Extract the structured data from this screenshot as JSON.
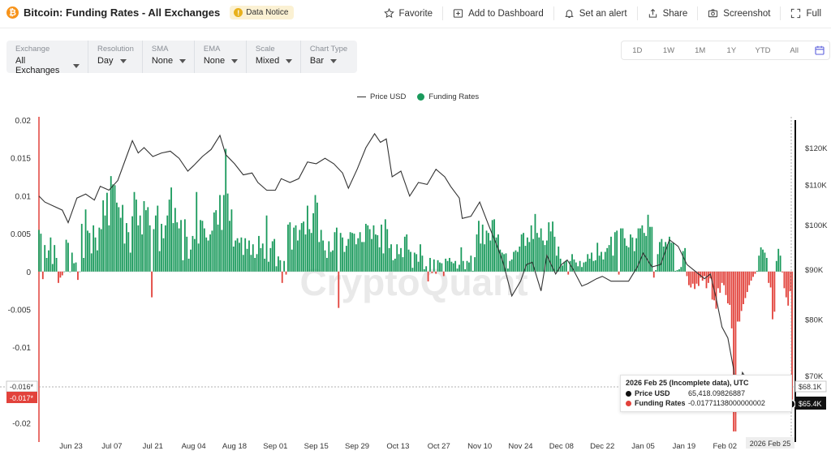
{
  "header": {
    "logo_icon": "bitcoin-logo-icon",
    "title": "Bitcoin: Funding Rates - All Exchanges",
    "notice_label": "Data Notice",
    "actions": {
      "favorite": "Favorite",
      "add_dashboard": "Add to Dashboard",
      "alert": "Set an alert",
      "share": "Share",
      "screenshot": "Screenshot",
      "full": "Full"
    }
  },
  "controls": [
    {
      "label": "Exchange",
      "value": "All Exchanges"
    },
    {
      "label": "Resolution",
      "value": "Day"
    },
    {
      "label": "SMA",
      "value": "None"
    },
    {
      "label": "EMA",
      "value": "None"
    },
    {
      "label": "Scale",
      "value": "Mixed"
    },
    {
      "label": "Chart Type",
      "value": "Bar"
    }
  ],
  "ranges": [
    "1D",
    "1W",
    "1M",
    "1Y",
    "YTD",
    "All"
  ],
  "legend": {
    "price": "Price USD",
    "funding": "Funding Rates"
  },
  "colors": {
    "positive": "#1a9a5c",
    "negative": "#e2423b",
    "price_line": "#333333",
    "accent": "#5b5fdc"
  },
  "watermark": "CryptoQuant",
  "tooltip": {
    "title": "2026 Feb 25 (Incomplete data), UTC",
    "price_label": "Price USD",
    "price_value": "65,418.09826887",
    "funding_label": "Funding Rates",
    "funding_value": "-0.01771138000000002"
  },
  "crosshair": {
    "left_labels": [
      "-0.016*",
      "-0.017*"
    ],
    "right_labels": [
      "$68.1K",
      "$65.4K"
    ],
    "date_label": "2026 Feb 25"
  },
  "chart_data": {
    "type": "bar",
    "x_start": "2025-06-12",
    "x_end": "2026-02-25",
    "x_ticks": [
      "Jun 23",
      "Jul 07",
      "Jul 21",
      "Aug 04",
      "Aug 18",
      "Sep 01",
      "Sep 15",
      "Sep 29",
      "Oct 13",
      "Oct 27",
      "Nov 10",
      "Nov 24",
      "Dec 08",
      "Dec 22",
      "Jan 05",
      "Jan 19",
      "Feb 02"
    ],
    "y_left": {
      "ticks": [
        "0.02",
        "0.015",
        "0.01",
        "0.005",
        "0",
        "-0.005",
        "-0.01",
        "-0.015",
        "-0.02"
      ],
      "range": [
        -0.0225,
        0.02
      ]
    },
    "y_right": {
      "scale": "log",
      "ticks": [
        "$120K",
        "$110K",
        "$100K",
        "$90K",
        "$80K",
        "$70K"
      ]
    },
    "series": [
      {
        "name": "Funding Rates",
        "kind": "bar",
        "values": [
          0.0055,
          0.005,
          -0.001,
          0.0035,
          0.0018,
          0.0028,
          0.0045,
          0.001,
          0.0035,
          0.0018,
          -0.0015,
          -0.0008,
          -0.0005,
          0.0,
          0.0042,
          0.0038,
          0.0,
          0.0025,
          0.0011,
          0.0012,
          -0.0011,
          0.0,
          0.0063,
          0.0018,
          0.0082,
          0.0054,
          0.0051,
          0.0024,
          0.0061,
          0.0045,
          0.0028,
          0.0058,
          0.0056,
          0.0094,
          0.0074,
          0.0104,
          0.0061,
          0.0126,
          0.0115,
          0.0114,
          0.0091,
          0.0085,
          0.0071,
          0.0088,
          0.0037,
          0.0064,
          0.0052,
          0.0025,
          0.0073,
          0.0105,
          0.0095,
          0.0061,
          0.0074,
          0.0049,
          0.0093,
          0.0081,
          0.0085,
          0.0061,
          -0.0034,
          0.0056,
          0.0074,
          0.0087,
          0.0027,
          0.0063,
          0.0044,
          0.0061,
          0.0074,
          0.0095,
          0.0111,
          0.0064,
          0.0084,
          0.0065,
          0.0057,
          0.0068,
          0.0015,
          0.0069,
          0.0046,
          0.0017,
          0.0029,
          0.0047,
          0.0043,
          0.0105,
          0.0037,
          0.0068,
          0.0067,
          0.0057,
          0.0045,
          0.0041,
          0.0049,
          0.0054,
          0.0078,
          0.0081,
          0.0062,
          0.0101,
          0.0055,
          0.0101,
          0.0162,
          0.0103,
          0.0067,
          0.0082,
          0.0033,
          0.0041,
          0.0044,
          0.0038,
          0.0045,
          0.0022,
          0.0044,
          0.003,
          0.0041,
          0.0022,
          0.0036,
          0.0018,
          0.0023,
          0.0047,
          0.0031,
          0.0037,
          0.0017,
          0.0074,
          0.0013,
          0.0031,
          0.004,
          0.0043,
          0.0007,
          0.002,
          0.0015,
          -0.0015,
          0.0014,
          -0.0004,
          0.0062,
          0.0065,
          0.0029,
          0.0058,
          0.0061,
          0.0041,
          0.0055,
          0.0064,
          0.0066,
          0.0049,
          0.0087,
          0.0056,
          0.0051,
          0.0077,
          0.0101,
          0.0091,
          0.0039,
          0.0055,
          0.0041,
          0.0028,
          0.0018,
          0.004,
          0.0026,
          0.0028,
          0.0052,
          0.0058,
          -0.0048,
          0.0051,
          0.0045,
          0.0026,
          0.0034,
          0.0043,
          0.0052,
          0.0051,
          0.005,
          0.0036,
          0.0044,
          0.0052,
          0.0039,
          0.0039,
          0.0063,
          0.0061,
          0.0056,
          0.0043,
          0.0061,
          0.0049,
          0.0048,
          0.0032,
          0.0062,
          0.0024,
          0.0069,
          0.0056,
          0.0031,
          0.0036,
          0.0015,
          0.0017,
          0.0036,
          0.0023,
          0.0031,
          0.0019,
          0.0046,
          0.0049,
          0.0029,
          0.0026,
          0.0005,
          0.0025,
          0.0023,
          0.0013,
          0.0036,
          0.0021,
          0.0003,
          0.0007,
          -0.0013,
          0.0018,
          -0.0002,
          0.0016,
          -0.0003,
          0.0015,
          0.0012,
          0.0011,
          -0.0006,
          0.0017,
          0.0014,
          0.0018,
          0.0013,
          0.0011,
          0.0014,
          0.0004,
          0.0009,
          0.0032,
          0.0014,
          0.0003,
          0.0014,
          0.0012,
          0.0021,
          0.0001,
          0.0019,
          0.0049,
          0.0067,
          0.0037,
          0.0062,
          0.0036,
          0.0054,
          0.0051,
          0.0041,
          0.0068,
          0.0069,
          0.0045,
          0.0049,
          0.0029,
          0.0025,
          0.0023,
          0.0024,
          0.0004,
          0.0014,
          0.0016,
          0.0026,
          0.0028,
          0.0026,
          0.0033,
          0.0049,
          0.0051,
          0.0034,
          0.0045,
          0.0039,
          0.0061,
          0.0043,
          0.0076,
          0.0051,
          0.0045,
          0.0057,
          0.0041,
          0.0035,
          0.0041,
          0.0065,
          0.0053,
          0.0066,
          0.0046,
          0.0021,
          0.0033,
          0.0017,
          0.0008,
          0.0013,
          0.0015,
          -0.0004,
          0.0014,
          0.0023,
          0.0016,
          0.0012,
          0.0007,
          0.0014,
          0.0006,
          0.0012,
          0.0013,
          0.0023,
          0.0017,
          0.0025,
          0.0014,
          0.0015,
          0.0038,
          0.0021,
          0.0026,
          0.0016,
          0.0026,
          0.0031,
          0.0035,
          0.0046,
          0.0021,
          0.0052,
          0.0054,
          -0.0004,
          0.0057,
          0.0057,
          0.0044,
          0.0034,
          0.0032,
          0.0049,
          0.0045,
          0.0027,
          0.0044,
          0.0057,
          0.0057,
          0.0061,
          0.0051,
          0.0047,
          0.0075,
          0.0059,
          0.0059,
          -0.0008,
          0.0002,
          0.0023,
          0.0039,
          0.0043,
          0.0033,
          0.0039,
          0.0036,
          0.0046,
          0.0038,
          0.0038,
          0.0001,
          0.0002,
          0.0003,
          0.0006,
          0.0027,
          0.0031,
          -0.0006,
          -0.0018,
          -0.0021,
          -0.0016,
          -0.0023,
          -0.0016,
          -0.0019,
          -0.0008,
          -0.0012,
          -0.0006,
          -0.0022,
          -0.0015,
          -0.0009,
          -0.0037,
          -0.0038,
          -0.0049,
          -0.0022,
          -0.0028,
          -0.0015,
          -0.0018,
          -0.0031,
          -0.0042,
          -0.0044,
          -0.0075,
          -0.0211,
          -0.0211,
          -0.0066,
          -0.0066,
          -0.0052,
          -0.0043,
          -0.0035,
          -0.0027,
          -0.0018,
          -0.0012,
          -0.0007,
          -0.0003,
          0.0001,
          0.0021,
          0.0032,
          0.0029,
          0.0025,
          0.0018,
          -0.0015,
          -0.0021,
          -0.0063,
          -0.0053,
          0.0014,
          0.003,
          0.0021,
          -0.0001,
          -0.0022,
          -0.0034,
          -0.0045,
          -0.0026,
          -0.0177
        ]
      },
      {
        "name": "Price USD",
        "kind": "line",
        "points": [
          [
            "2025-06-12",
            107000
          ],
          [
            "2025-06-14",
            105500
          ],
          [
            "2025-06-17",
            104500
          ],
          [
            "2025-06-20",
            103500
          ],
          [
            "2025-06-22",
            100500
          ],
          [
            "2025-06-25",
            106500
          ],
          [
            "2025-06-28",
            107500
          ],
          [
            "2025-07-01",
            106000
          ],
          [
            "2025-07-03",
            109500
          ],
          [
            "2025-07-06",
            108500
          ],
          [
            "2025-07-09",
            111000
          ],
          [
            "2025-07-12",
            117500
          ],
          [
            "2025-07-14",
            122000
          ],
          [
            "2025-07-16",
            118500
          ],
          [
            "2025-07-18",
            120000
          ],
          [
            "2025-07-21",
            117500
          ],
          [
            "2025-07-24",
            118500
          ],
          [
            "2025-07-27",
            119000
          ],
          [
            "2025-07-30",
            117000
          ],
          [
            "2025-08-02",
            113500
          ],
          [
            "2025-08-04",
            115000
          ],
          [
            "2025-08-07",
            117500
          ],
          [
            "2025-08-10",
            119500
          ],
          [
            "2025-08-13",
            123500
          ],
          [
            "2025-08-15",
            118000
          ],
          [
            "2025-08-18",
            115500
          ],
          [
            "2025-08-21",
            112500
          ],
          [
            "2025-08-24",
            113000
          ],
          [
            "2025-08-26",
            110500
          ],
          [
            "2025-08-29",
            108500
          ],
          [
            "2025-09-01",
            108500
          ],
          [
            "2025-09-03",
            111500
          ],
          [
            "2025-09-06",
            110500
          ],
          [
            "2025-09-09",
            111500
          ],
          [
            "2025-09-12",
            116000
          ],
          [
            "2025-09-15",
            115500
          ],
          [
            "2025-09-18",
            117000
          ],
          [
            "2025-09-21",
            115500
          ],
          [
            "2025-09-24",
            113000
          ],
          [
            "2025-09-26",
            109000
          ],
          [
            "2025-09-29",
            114000
          ],
          [
            "2025-10-02",
            120000
          ],
          [
            "2025-10-05",
            124000
          ],
          [
            "2025-10-07",
            121500
          ],
          [
            "2025-10-09",
            122500
          ],
          [
            "2025-10-11",
            112000
          ],
          [
            "2025-10-14",
            113500
          ],
          [
            "2025-10-17",
            107000
          ],
          [
            "2025-10-20",
            110500
          ],
          [
            "2025-10-23",
            110000
          ],
          [
            "2025-10-26",
            114000
          ],
          [
            "2025-10-29",
            112000
          ],
          [
            "2025-10-31",
            109500
          ],
          [
            "2025-11-03",
            106500
          ],
          [
            "2025-11-04",
            101500
          ],
          [
            "2025-11-07",
            102000
          ],
          [
            "2025-11-10",
            105500
          ],
          [
            "2025-11-13",
            100000
          ],
          [
            "2025-11-16",
            95000
          ],
          [
            "2025-11-18",
            91500
          ],
          [
            "2025-11-21",
            84500
          ],
          [
            "2025-11-24",
            87500
          ],
          [
            "2025-11-26",
            91000
          ],
          [
            "2025-11-28",
            91500
          ],
          [
            "2025-12-01",
            85500
          ],
          [
            "2025-12-03",
            93000
          ],
          [
            "2025-12-06",
            89000
          ],
          [
            "2025-12-08",
            91000
          ],
          [
            "2025-12-10",
            92000
          ],
          [
            "2025-12-12",
            90000
          ],
          [
            "2025-12-15",
            86500
          ],
          [
            "2025-12-17",
            87000
          ],
          [
            "2025-12-20",
            88000
          ],
          [
            "2025-12-22",
            88500
          ],
          [
            "2025-12-25",
            87500
          ],
          [
            "2025-12-28",
            87500
          ],
          [
            "2025-12-31",
            87500
          ],
          [
            "2026-01-03",
            90500
          ],
          [
            "2026-01-05",
            93500
          ],
          [
            "2026-01-08",
            90500
          ],
          [
            "2026-01-11",
            91000
          ],
          [
            "2026-01-14",
            96500
          ],
          [
            "2026-01-17",
            95000
          ],
          [
            "2026-01-20",
            91000
          ],
          [
            "2026-01-23",
            89500
          ],
          [
            "2026-01-26",
            88000
          ],
          [
            "2026-01-28",
            89000
          ],
          [
            "2026-01-30",
            84000
          ],
          [
            "2026-02-01",
            78500
          ],
          [
            "2026-02-03",
            76500
          ],
          [
            "2026-02-05",
            71000
          ],
          [
            "2026-02-06",
            65000
          ],
          [
            "2026-02-08",
            70500
          ],
          [
            "2026-02-10",
            69000
          ],
          [
            "2026-02-12",
            68000
          ],
          [
            "2026-02-15",
            68500
          ],
          [
            "2026-02-18",
            67000
          ],
          [
            "2026-02-21",
            68000
          ],
          [
            "2026-02-23",
            65000
          ],
          [
            "2026-02-25",
            65418
          ]
        ]
      }
    ]
  }
}
